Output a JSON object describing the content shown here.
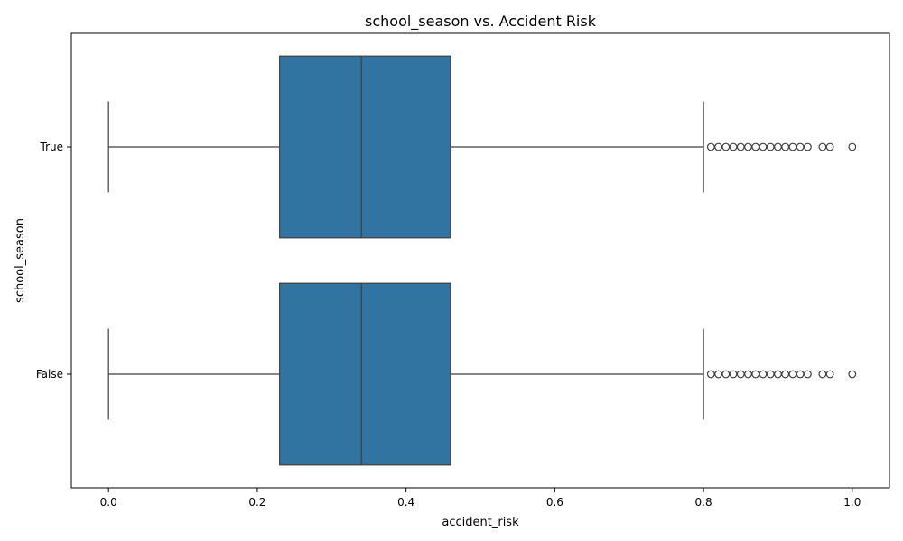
{
  "chart_data": {
    "type": "boxplot",
    "title": "school_season vs. Accident Risk",
    "xlabel": "accident_risk",
    "ylabel": "school_season",
    "xlim": [
      -0.05,
      1.05
    ],
    "xticks": [
      "0.0",
      "0.2",
      "0.4",
      "0.6",
      "0.8",
      "1.0"
    ],
    "xtick_values": [
      0,
      0.2,
      0.4,
      0.6,
      0.8,
      1.0
    ],
    "orientation": "horizontal",
    "grid": false,
    "box_color": "#3274a1",
    "line_color": "#3f3f3f",
    "categories": [
      "True",
      "False"
    ],
    "boxes": [
      {
        "category": "True",
        "whisker_low": 0.0,
        "q1": 0.23,
        "median": 0.34,
        "q3": 0.46,
        "whisker_high": 0.8,
        "outliers": [
          0.81,
          0.82,
          0.83,
          0.84,
          0.85,
          0.86,
          0.87,
          0.88,
          0.89,
          0.9,
          0.91,
          0.92,
          0.93,
          0.94,
          0.96,
          0.97,
          1.0
        ]
      },
      {
        "category": "False",
        "whisker_low": 0.0,
        "q1": 0.23,
        "median": 0.34,
        "q3": 0.46,
        "whisker_high": 0.8,
        "outliers": [
          0.81,
          0.82,
          0.83,
          0.84,
          0.85,
          0.86,
          0.87,
          0.88,
          0.89,
          0.9,
          0.91,
          0.92,
          0.93,
          0.94,
          0.96,
          0.97,
          1.0
        ]
      }
    ]
  }
}
